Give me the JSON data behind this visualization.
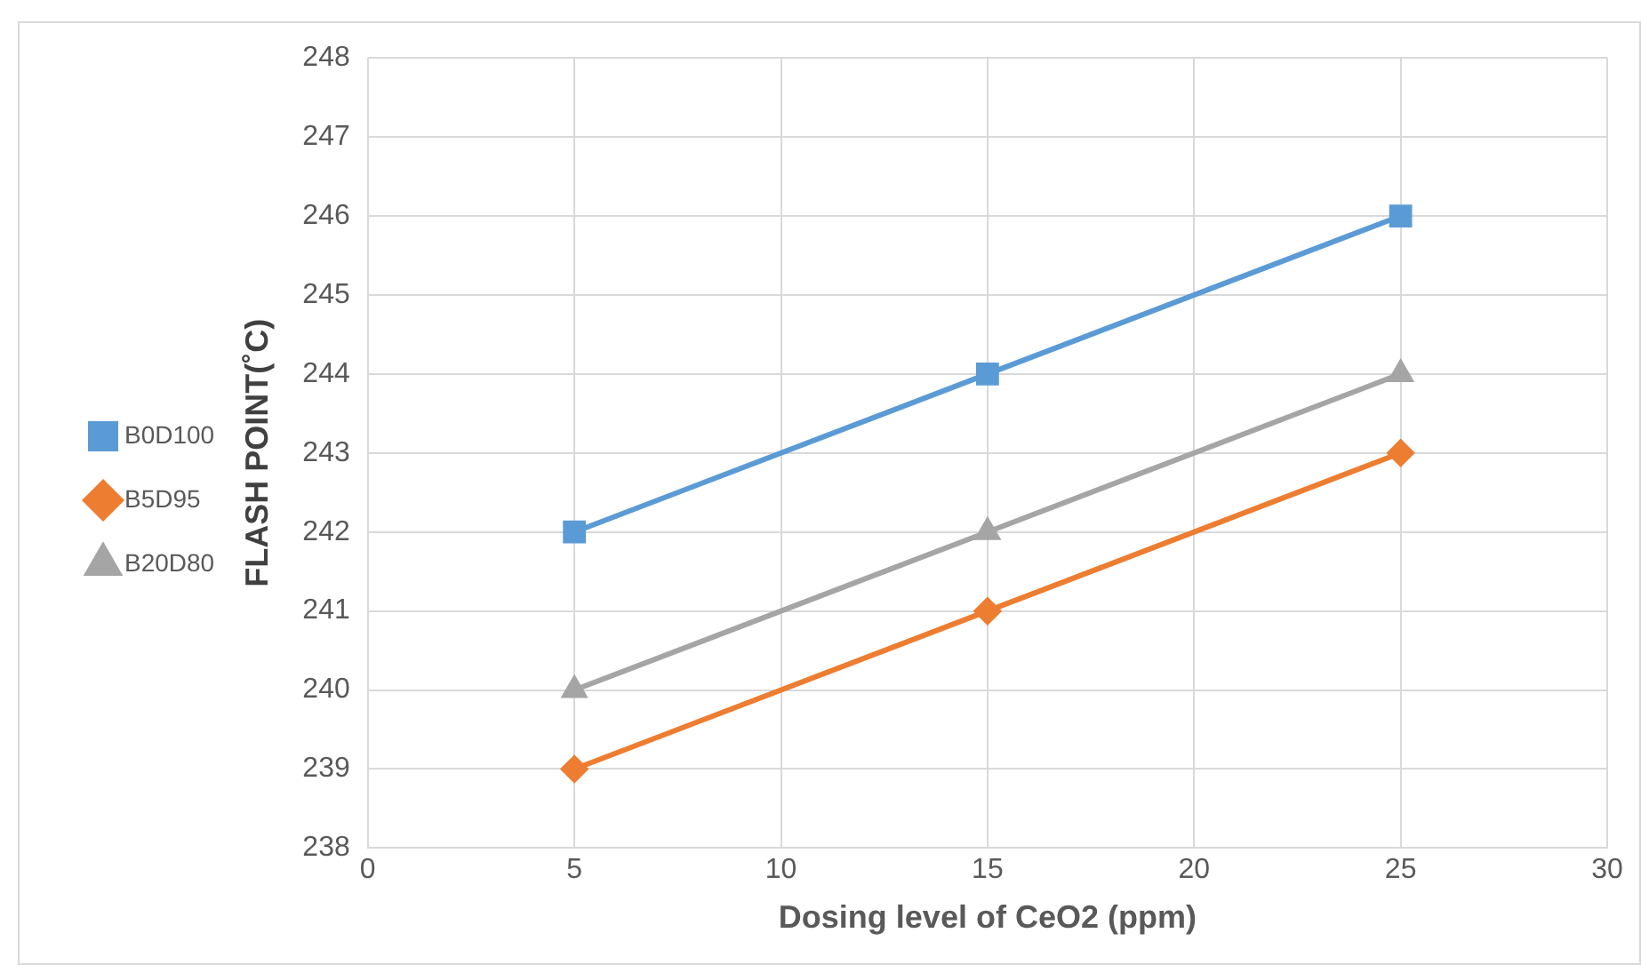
{
  "chart_data": {
    "type": "line",
    "xlabel": "Dosing level of CeO2 (ppm)",
    "ylabel": "FLASH POINT(˚C)",
    "x": [
      5,
      15,
      25
    ],
    "series": [
      {
        "name": "B0D100",
        "color": "#5b9bd5",
        "values": [
          242,
          244,
          246
        ],
        "marker": "square"
      },
      {
        "name": "B5D95",
        "color": "#ed7d31",
        "values": [
          239,
          241,
          243
        ],
        "marker": "diamond"
      },
      {
        "name": "B20D80",
        "color": "#a5a5a5",
        "values": [
          240,
          242,
          244
        ],
        "marker": "triangle"
      }
    ],
    "xlim": [
      0,
      30
    ],
    "xticks": [
      0,
      5,
      10,
      15,
      20,
      25,
      30
    ],
    "ylim": [
      238,
      248
    ],
    "yticks": [
      238,
      239,
      240,
      241,
      242,
      243,
      244,
      245,
      246,
      247,
      248
    ],
    "grid": true,
    "legend": "left",
    "line_style": "solid"
  }
}
